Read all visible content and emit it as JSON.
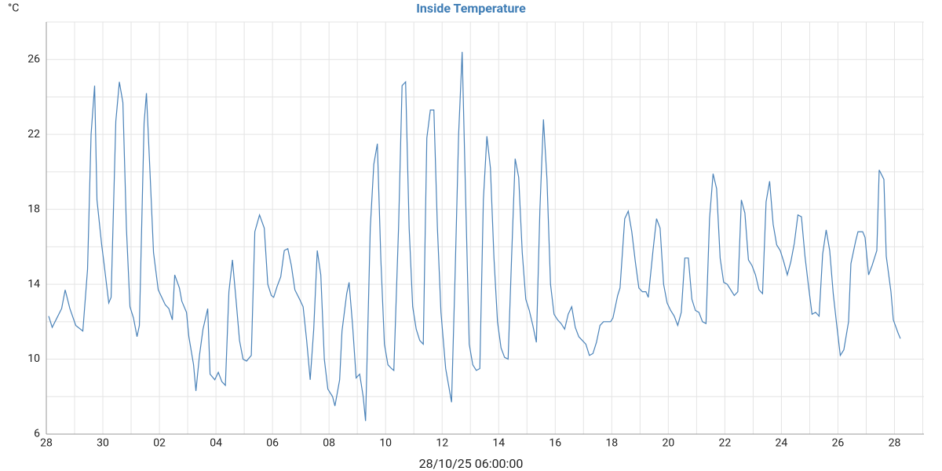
{
  "chart_data": {
    "type": "line",
    "title": "Inside Temperature",
    "y_unit": "°C",
    "x_label": "28/10/25 06:00:00",
    "xlim": [
      0,
      745
    ],
    "xticks": [
      {
        "value": 0,
        "label": "28"
      },
      {
        "value": 48,
        "label": "30"
      },
      {
        "value": 96,
        "label": "02"
      },
      {
        "value": 144,
        "label": "04"
      },
      {
        "value": 192,
        "label": "06"
      },
      {
        "value": 240,
        "label": "08"
      },
      {
        "value": 288,
        "label": "10"
      },
      {
        "value": 336,
        "label": "12"
      },
      {
        "value": 384,
        "label": "14"
      },
      {
        "value": 432,
        "label": "16"
      },
      {
        "value": 480,
        "label": "18"
      },
      {
        "value": 528,
        "label": "20"
      },
      {
        "value": 576,
        "label": "22"
      },
      {
        "value": 624,
        "label": "24"
      },
      {
        "value": 672,
        "label": "26"
      },
      {
        "value": 720,
        "label": "28"
      }
    ],
    "xminor": [
      24,
      72,
      120,
      168,
      216,
      264,
      312,
      360,
      408,
      456,
      504,
      552,
      600,
      648,
      696,
      744
    ],
    "ylim": [
      6,
      28
    ],
    "yticks": [
      6,
      10,
      14,
      18,
      22,
      26
    ],
    "yminor": [
      8,
      12,
      16,
      20,
      24,
      28
    ],
    "grid": true,
    "series": [
      {
        "name": "Inside Temperature",
        "color": "#4a82b8",
        "x": [
          2,
          5,
          9,
          13,
          16,
          20,
          25,
          31,
          35,
          38,
          41,
          43,
          47,
          49,
          53,
          55,
          59,
          62,
          65,
          68,
          71,
          74,
          77,
          79,
          83,
          85,
          88,
          91,
          95,
          98,
          101,
          104,
          107,
          109,
          113,
          115,
          119,
          121,
          125,
          127,
          130,
          133,
          137,
          139,
          143,
          146,
          149,
          152,
          155,
          158,
          161,
          164,
          167,
          170,
          174,
          177,
          181,
          185,
          188,
          191,
          193,
          196,
          199,
          202,
          205,
          208,
          211,
          215,
          218,
          221,
          224,
          227,
          230,
          233,
          236,
          239,
          243,
          245,
          249,
          251,
          255,
          257,
          260,
          263,
          266,
          269,
          271,
          275,
          278,
          281,
          284,
          287,
          290,
          293,
          295,
          299,
          302,
          305,
          308,
          311,
          314,
          317,
          320,
          323,
          326,
          329,
          332,
          335,
          339,
          344,
          347,
          350,
          353,
          356,
          359,
          362,
          365,
          368,
          371,
          374,
          377,
          380,
          383,
          386,
          389,
          392,
          395,
          398,
          401,
          404,
          407,
          410,
          413,
          416,
          419,
          422,
          425,
          428,
          431,
          434,
          437,
          440,
          443,
          446,
          449,
          452,
          455,
          458,
          461,
          464,
          467,
          470,
          473,
          476,
          479,
          481,
          485,
          487,
          491,
          494,
          497,
          500,
          503,
          506,
          509,
          511,
          515,
          518,
          521,
          524,
          527,
          530,
          533,
          536,
          539,
          542,
          545,
          548,
          551,
          554,
          557,
          560,
          563,
          566,
          569,
          572,
          575,
          578,
          581,
          584,
          587,
          590,
          593,
          596,
          599,
          602,
          605,
          608,
          611,
          614,
          617,
          620,
          623,
          626,
          629,
          632,
          635,
          638,
          641,
          644,
          647,
          650,
          653,
          656,
          659,
          662,
          665,
          668,
          671,
          674,
          677,
          681,
          683,
          687,
          689,
          693,
          695,
          698,
          701,
          705,
          707,
          711,
          713,
          717,
          719,
          723,
          725
        ],
        "values": [
          12.3,
          11.7,
          12.2,
          12.7,
          13.7,
          12.7,
          11.8,
          11.5,
          14.8,
          22.0,
          24.6,
          18.5,
          16.1,
          15.1,
          13.0,
          13.3,
          22.7,
          24.8,
          23.7,
          17.0,
          12.8,
          12.2,
          11.2,
          11.8,
          22.6,
          24.2,
          20.0,
          15.7,
          13.7,
          13.3,
          12.9,
          12.7,
          12.1,
          14.5,
          13.8,
          13.1,
          12.5,
          11.2,
          9.7,
          8.3,
          10.2,
          11.6,
          12.7,
          9.2,
          8.9,
          9.3,
          8.8,
          8.6,
          13.6,
          15.3,
          13.2,
          11.0,
          10.0,
          9.9,
          10.2,
          16.8,
          17.7,
          17.0,
          14.0,
          13.4,
          13.3,
          13.9,
          14.4,
          15.8,
          15.9,
          15.0,
          13.7,
          13.2,
          12.8,
          11.0,
          8.9,
          11.6,
          15.8,
          14.5,
          10.0,
          8.4,
          8.0,
          7.5,
          8.9,
          11.5,
          13.5,
          14.1,
          11.8,
          9.0,
          9.2,
          8.0,
          6.7,
          17.0,
          20.4,
          21.5,
          15.3,
          10.8,
          9.7,
          9.5,
          9.4,
          17.0,
          24.6,
          24.8,
          17.0,
          12.8,
          11.6,
          11.0,
          10.8,
          21.8,
          23.3,
          23.3,
          17.0,
          12.5,
          9.5,
          7.7,
          14.5,
          22.0,
          26.4,
          18.5,
          10.8,
          9.7,
          9.4,
          9.5,
          18.5,
          21.9,
          20.2,
          15.4,
          12.0,
          10.6,
          10.1,
          10.0,
          15.5,
          20.7,
          19.7,
          15.7,
          13.2,
          12.6,
          11.8,
          10.9,
          18.0,
          22.8,
          19.6,
          14.0,
          12.4,
          12.1,
          11.9,
          11.6,
          12.4,
          12.8,
          11.7,
          11.2,
          11.0,
          10.8,
          10.2,
          10.3,
          10.9,
          11.8,
          12.0,
          12.0,
          12.0,
          12.2,
          13.4,
          13.8,
          17.5,
          17.9,
          16.8,
          15.2,
          13.8,
          13.6,
          13.6,
          13.3,
          15.8,
          17.5,
          17.0,
          14.0,
          13.0,
          12.6,
          12.3,
          11.8,
          12.5,
          15.4,
          15.4,
          13.2,
          12.6,
          12.5,
          12.0,
          11.9,
          17.5,
          19.9,
          19.1,
          15.4,
          14.1,
          14.0,
          13.7,
          13.4,
          13.6,
          18.5,
          17.8,
          15.3,
          15.0,
          14.5,
          13.7,
          13.5,
          18.4,
          19.5,
          17.2,
          16.1,
          15.8,
          15.2,
          14.5,
          15.2,
          16.2,
          17.7,
          17.6,
          15.5,
          13.9,
          12.4,
          12.5,
          12.3,
          15.6,
          16.9,
          15.8,
          13.5,
          11.8,
          10.2,
          10.5,
          12.0,
          15.1,
          16.3,
          16.8,
          16.8,
          16.5,
          14.5,
          15.0,
          15.8,
          20.1,
          19.6,
          15.5,
          13.6,
          12.1,
          11.4,
          11.1
        ]
      }
    ]
  }
}
